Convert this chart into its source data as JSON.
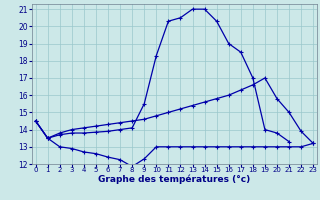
{
  "title": "Graphe des températures (°c)",
  "bg_color": "#cce8e8",
  "grid_color": "#9ac8cc",
  "line_color": "#0000aa",
  "xlim": [
    0,
    23
  ],
  "ylim": [
    12,
    21
  ],
  "xticks": [
    0,
    1,
    2,
    3,
    4,
    5,
    6,
    7,
    8,
    9,
    10,
    11,
    12,
    13,
    14,
    15,
    16,
    17,
    18,
    19,
    20,
    21,
    22,
    23
  ],
  "yticks": [
    12,
    13,
    14,
    15,
    16,
    17,
    18,
    19,
    20,
    21
  ],
  "series1_y": [
    14.5,
    13.5,
    13.7,
    13.8,
    13.8,
    13.85,
    13.9,
    14.0,
    14.1,
    15.5,
    18.3,
    20.3,
    20.5,
    21.0,
    21.0,
    20.3,
    19.0,
    18.5,
    17.0,
    14.0,
    13.8,
    13.3,
    null,
    null
  ],
  "series2_y": [
    14.5,
    13.5,
    13.8,
    14.0,
    14.1,
    14.2,
    14.3,
    14.4,
    14.5,
    14.6,
    14.8,
    15.0,
    15.2,
    15.4,
    15.6,
    15.8,
    16.0,
    16.3,
    16.6,
    17.0,
    15.8,
    15.0,
    13.9,
    13.2
  ],
  "series3_y": [
    14.5,
    13.5,
    13.0,
    12.9,
    12.7,
    12.6,
    12.4,
    12.25,
    11.85,
    12.3,
    13.0,
    13.0,
    13.0,
    13.0,
    13.0,
    13.0,
    13.0,
    13.0,
    13.0,
    13.0,
    13.0,
    13.0,
    13.0,
    13.2
  ]
}
